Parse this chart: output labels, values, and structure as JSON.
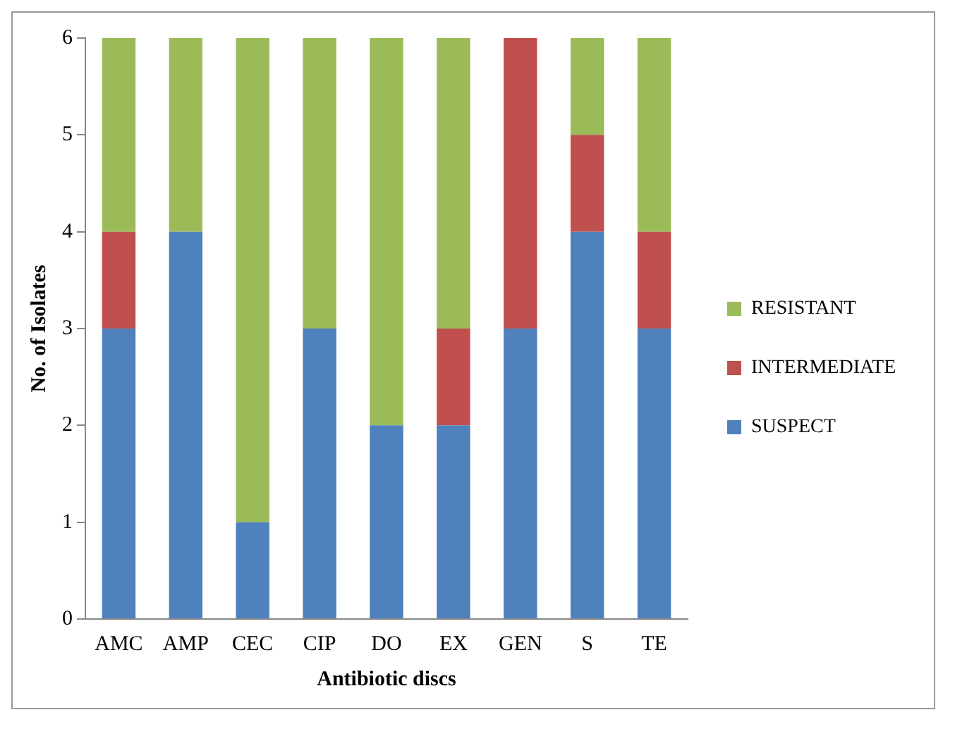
{
  "chart_data": {
    "type": "bar",
    "stacked": true,
    "xlabel": "Antibiotic discs",
    "ylabel": "No. of Isolates",
    "categories": [
      "AMC",
      "AMP",
      "CEC",
      "CIP",
      "DO",
      "EX",
      "GEN",
      "S",
      "TE"
    ],
    "series": [
      {
        "name": "SUSPECT",
        "color": "#4f81bd",
        "values": [
          3,
          4,
          1,
          3,
          2,
          2,
          3,
          4,
          3
        ]
      },
      {
        "name": "INTERMEDIATE",
        "color": "#c0504d",
        "values": [
          1,
          0,
          0,
          0,
          0,
          1,
          3,
          1,
          1
        ]
      },
      {
        "name": "RESISTANT",
        "color": "#9bbb59",
        "values": [
          2,
          2,
          5,
          3,
          4,
          3,
          0,
          1,
          2
        ]
      }
    ],
    "ylim": [
      0,
      6
    ],
    "yticks": [
      0,
      1,
      2,
      3,
      4,
      5,
      6
    ],
    "grid": false,
    "legend": "right"
  }
}
